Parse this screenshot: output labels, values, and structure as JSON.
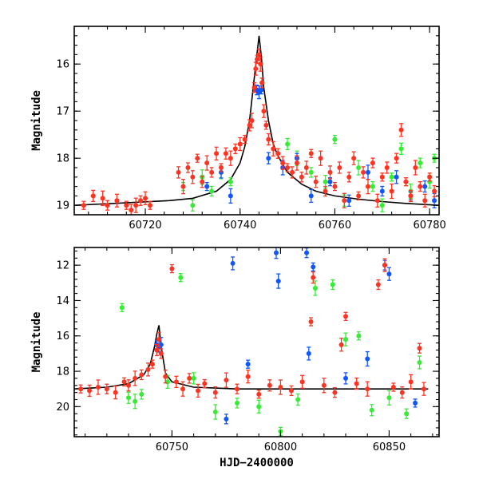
{
  "chart_data": [
    {
      "type": "scatter",
      "panel": "top",
      "xlabel": "",
      "ylabel": "Magnitude",
      "xlim": [
        60705,
        60782
      ],
      "ylim": [
        19.2,
        15.2
      ],
      "y_inverted": true,
      "xticks": [
        60720,
        60740,
        60760,
        60780
      ],
      "yticks": [
        16,
        17,
        18,
        19
      ],
      "error_bars": true,
      "colors": {
        "red": "#ff3322",
        "green": "#33ee33",
        "blue": "#1155ff",
        "model": "#000000"
      },
      "model_curve": {
        "x": [
          60705,
          60715,
          60725,
          60730,
          60735,
          60738,
          60740,
          60741,
          60742,
          60743,
          60743.5,
          60744,
          60744.5,
          60745,
          60746,
          60747,
          60748,
          60750,
          60753,
          60756,
          60760,
          60765,
          60770,
          60775,
          60782
        ],
        "y": [
          19.0,
          18.95,
          18.9,
          18.85,
          18.7,
          18.45,
          18.1,
          17.75,
          17.2,
          16.3,
          15.85,
          15.4,
          15.85,
          16.5,
          17.2,
          17.7,
          17.95,
          18.3,
          18.55,
          18.7,
          18.8,
          18.87,
          18.92,
          18.96,
          19.0
        ]
      },
      "series": [
        {
          "name": "",
          "color": "red",
          "x": [
            60707,
            60709,
            60711,
            60712,
            60714,
            60716,
            60717,
            60718,
            60719,
            60720,
            60721,
            60727,
            60728,
            60729,
            60730,
            60731,
            60732,
            60733,
            60734,
            60735,
            60736,
            60737,
            60738,
            60739,
            60740,
            60741,
            60742,
            60742.5,
            60743,
            60743.3,
            60743.6,
            60744,
            60744.3,
            60744.6,
            60745,
            60745.5,
            60746,
            60747,
            60748,
            60749,
            60750,
            60751,
            60752,
            60753,
            60754,
            60755,
            60756,
            60757,
            60758,
            60759,
            60760,
            60761,
            60762,
            60763,
            60764,
            60765,
            60766,
            60767,
            60768,
            60769,
            60770,
            60771,
            60772,
            60773,
            60774,
            60775,
            60776,
            60777,
            60778,
            60779,
            60780,
            60781
          ],
          "y": [
            19.0,
            18.8,
            18.85,
            19.0,
            18.9,
            19.0,
            19.1,
            19.0,
            18.9,
            18.85,
            19.0,
            18.3,
            18.6,
            18.2,
            18.4,
            18.0,
            18.5,
            18.1,
            18.3,
            17.9,
            18.2,
            17.9,
            18.0,
            17.8,
            17.7,
            17.6,
            17.3,
            17.2,
            16.5,
            16.1,
            15.9,
            15.8,
            16.0,
            16.4,
            17.0,
            17.3,
            17.6,
            17.8,
            17.9,
            18.1,
            18.2,
            18.3,
            18.1,
            18.4,
            18.2,
            17.9,
            18.5,
            18.0,
            18.7,
            18.3,
            18.6,
            18.2,
            18.9,
            18.4,
            18.0,
            18.8,
            18.3,
            18.6,
            18.1,
            18.9,
            18.4,
            18.2,
            18.7,
            18.0,
            17.4,
            18.5,
            18.8,
            18.2,
            18.6,
            18.9,
            18.4,
            18.7
          ]
        },
        {
          "name": "",
          "color": "green",
          "x": [
            60728,
            60730,
            60732,
            60734,
            60736,
            60738,
            60750,
            60752,
            60755,
            60758,
            60760,
            60762,
            60765,
            60768,
            60770,
            60772,
            60774,
            60776,
            60778,
            60780,
            60781
          ],
          "y": [
            18.6,
            19.0,
            18.4,
            18.7,
            18.3,
            18.5,
            17.7,
            18.0,
            18.3,
            18.5,
            17.6,
            18.9,
            18.2,
            18.6,
            19.0,
            18.4,
            17.8,
            18.7,
            18.1,
            18.5,
            18.0
          ]
        },
        {
          "name": "",
          "color": "blue",
          "x": [
            60733,
            60736,
            60738,
            60743.5,
            60744,
            60744.5,
            60746,
            60749,
            60752,
            60755,
            60759,
            60763,
            60767,
            60770,
            60773,
            60776,
            60779,
            60781
          ],
          "y": [
            18.6,
            18.3,
            18.8,
            16.55,
            16.6,
            16.55,
            18.0,
            18.2,
            18.0,
            18.8,
            18.5,
            18.9,
            18.3,
            18.7,
            18.4,
            18.8,
            18.6,
            18.9
          ]
        }
      ]
    },
    {
      "type": "scatter",
      "panel": "bottom",
      "xlabel": "HJD−2400000",
      "ylabel": "Magnitude",
      "xlim": [
        60705,
        60873
      ],
      "ylim": [
        21.7,
        11.0
      ],
      "y_inverted": true,
      "xticks": [
        60750,
        60800,
        60850
      ],
      "yticks": [
        12,
        14,
        16,
        18,
        20
      ],
      "error_bars": true,
      "colors": {
        "red": "#ff3322",
        "green": "#33ee33",
        "blue": "#1155ff",
        "model": "#000000"
      },
      "model_curve": {
        "x": [
          60705,
          60720,
          60730,
          60737,
          60740,
          60742,
          60743,
          60744,
          60745,
          60747,
          60750,
          60760,
          60780,
          60800,
          60830,
          60868
        ],
        "y": [
          19.0,
          18.9,
          18.7,
          18.2,
          17.6,
          16.6,
          15.9,
          15.4,
          16.6,
          18.1,
          18.6,
          18.9,
          19.0,
          19.0,
          19.0,
          19.0
        ]
      },
      "series": [
        {
          "name": "",
          "color": "red",
          "x": [
            60708,
            60712,
            60716,
            60720,
            60724,
            60728,
            60730,
            60733,
            60736,
            60739,
            60741,
            60743,
            60744,
            60745,
            60747,
            60750,
            60752,
            60755,
            60758,
            60762,
            60765,
            60770,
            60775,
            60780,
            60785,
            60790,
            60795,
            60800,
            60805,
            60810,
            60814,
            60815,
            60820,
            60825,
            60828,
            60830,
            60835,
            60840,
            60845,
            60848,
            60852,
            60856,
            60860,
            60864,
            60866
          ],
          "y": [
            19.0,
            19.1,
            18.9,
            19.0,
            19.2,
            18.6,
            18.8,
            18.4,
            18.2,
            17.9,
            17.6,
            16.8,
            16.2,
            17.0,
            18.3,
            12.2,
            18.6,
            19.0,
            18.4,
            19.1,
            18.7,
            19.2,
            18.5,
            19.0,
            18.3,
            19.3,
            18.8,
            18.9,
            19.1,
            18.6,
            15.2,
            12.7,
            18.8,
            19.2,
            16.5,
            14.9,
            18.7,
            19.0,
            13.1,
            12.0,
            18.9,
            19.2,
            18.6,
            16.7,
            19.0
          ]
        },
        {
          "name": "",
          "color": "green",
          "x": [
            60727,
            60730,
            60733,
            60736,
            60748,
            60754,
            60760,
            60770,
            60780,
            60790,
            60800,
            60808,
            60816,
            60824,
            60830,
            60836,
            60842,
            60850,
            60858,
            60864
          ],
          "y": [
            14.4,
            19.5,
            19.7,
            19.3,
            18.6,
            12.7,
            18.4,
            20.3,
            19.8,
            20.0,
            21.4,
            19.6,
            13.3,
            13.1,
            16.2,
            16.0,
            20.2,
            19.5,
            20.4,
            17.5
          ]
        },
        {
          "name": "",
          "color": "blue",
          "x": [
            60743,
            60744,
            60745,
            60775,
            60778,
            60785,
            60798,
            60799,
            60812,
            60813,
            60815,
            60830,
            60840,
            60848,
            60850,
            60862
          ],
          "y": [
            16.5,
            16.6,
            16.5,
            20.7,
            11.9,
            17.6,
            11.3,
            12.9,
            11.3,
            17.0,
            12.1,
            18.4,
            17.3,
            12.0,
            12.5,
            19.8
          ]
        }
      ]
    }
  ]
}
